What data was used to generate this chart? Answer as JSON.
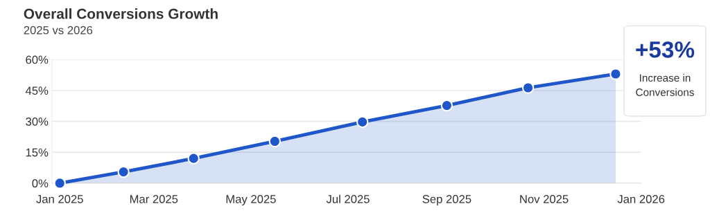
{
  "chart_data": {
    "type": "area",
    "title": "Overall Conversions Growth",
    "subtitle": "2025 vs 2026",
    "x": [
      "2025-01-01",
      "2025-02-10",
      "2025-03-26",
      "2025-05-16",
      "2025-07-10",
      "2025-09-01",
      "2025-10-22",
      "2025-12-16"
    ],
    "series": [
      {
        "color": "#1f56c9",
        "values": [
          0,
          5.5,
          12,
          20.3,
          29.7,
          37.7,
          46.3,
          53
        ]
      }
    ],
    "xlim": [
      "2024-12-27",
      "2026-01-01"
    ],
    "xticks": [
      {
        "value": "2025-01-01",
        "label": "Jan 2025"
      },
      {
        "value": "2025-03-01",
        "label": "Mar 2025"
      },
      {
        "value": "2025-05-01",
        "label": "May 2025"
      },
      {
        "value": "2025-07-01",
        "label": "Jul 2025"
      },
      {
        "value": "2025-09-01",
        "label": "Sep 2025"
      },
      {
        "value": "2025-11-01",
        "label": "Nov 2025"
      },
      {
        "value": "2026-01-01",
        "label": "Jan 2026"
      }
    ],
    "ylim": [
      0,
      60
    ],
    "yticks": [
      {
        "value": 0,
        "label": "0%"
      },
      {
        "value": 15,
        "label": "15%"
      },
      {
        "value": 30,
        "label": "30%"
      },
      {
        "value": 45,
        "label": "45%"
      },
      {
        "value": 60,
        "label": "60%"
      }
    ],
    "grid": "y",
    "marker": "circle",
    "line_style": "solid",
    "annotations": [
      "+53%",
      "Increase in Conversions"
    ]
  }
}
